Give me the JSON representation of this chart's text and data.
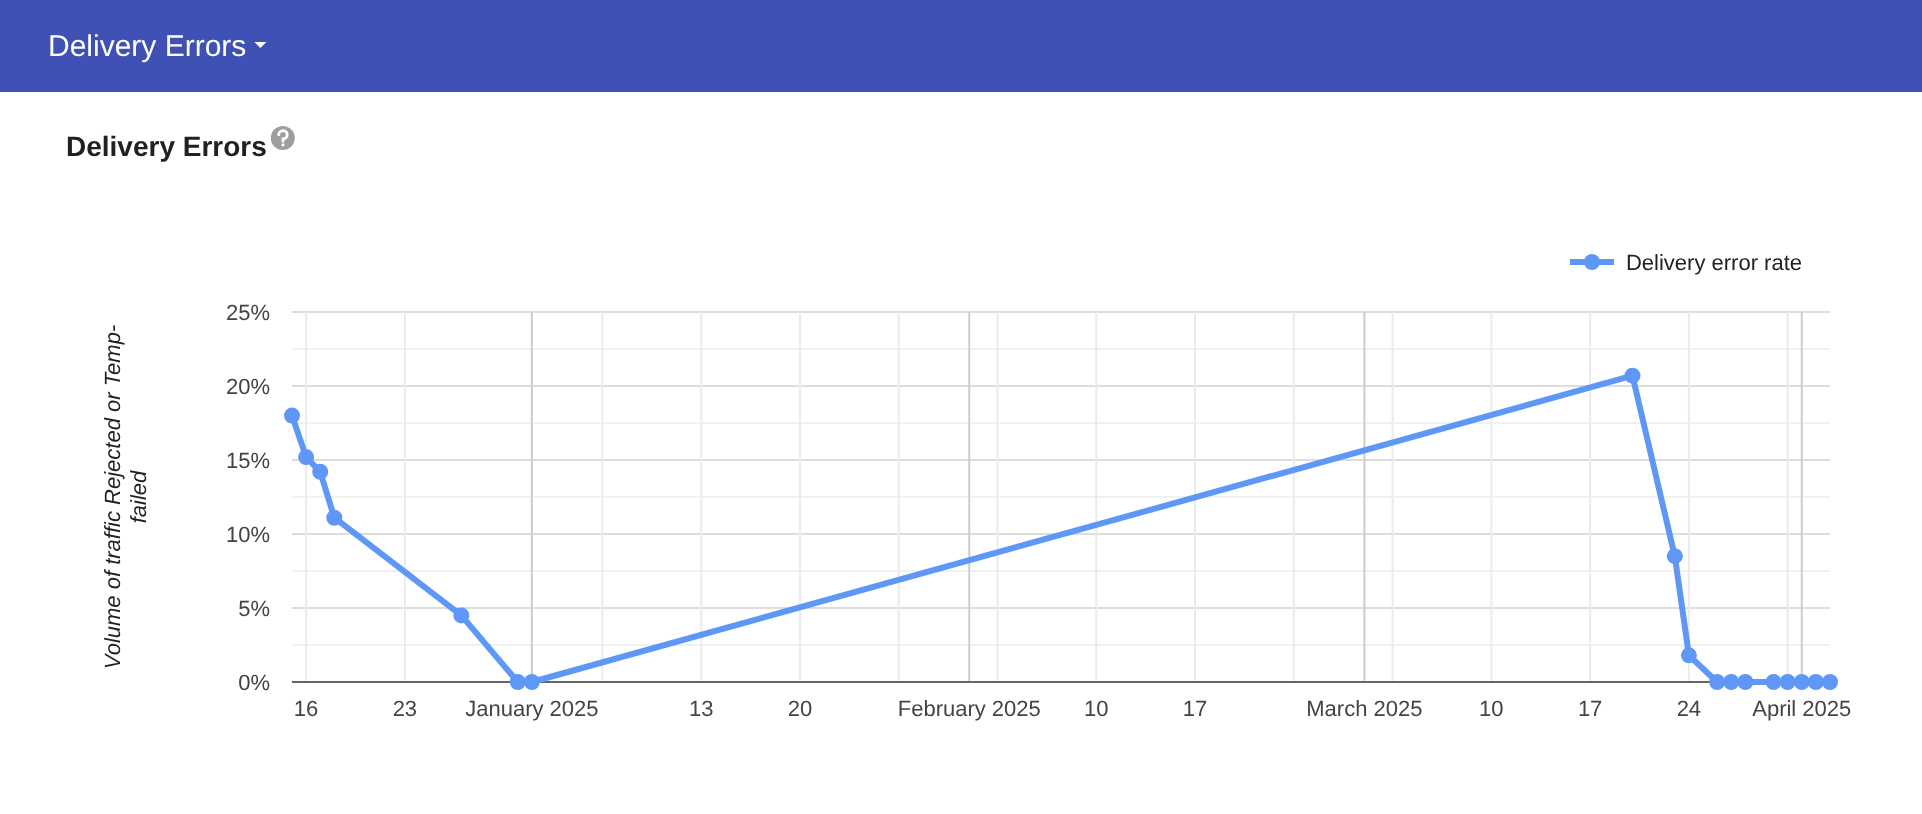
{
  "chart_data": {
    "type": "line",
    "title": "Delivery Errors",
    "annotations": [
      "Delivery Errors"
    ],
    "ylabel": "Volume of traffic Rejected or Temp-failed",
    "x": [
      "2024-12-15",
      "2024-12-16",
      "2024-12-17",
      "2024-12-18",
      "2024-12-27",
      "2024-12-31",
      "2025-01-01",
      "2025-03-20",
      "2025-03-23",
      "2025-03-24",
      "2025-03-26",
      "2025-03-27",
      "2025-03-28",
      "2025-03-30",
      "2025-03-31",
      "2025-04-01",
      "2025-04-02",
      "2025-04-03"
    ],
    "series": [
      {
        "name": "Delivery error rate",
        "color": "#5e97f6",
        "values": [
          18.0,
          15.2,
          14.2,
          11.1,
          4.5,
          0,
          0,
          20.7,
          8.5,
          1.8,
          0,
          0,
          0,
          0,
          0,
          0,
          0,
          0
        ]
      }
    ],
    "xlim": [
      "2024-12-15",
      "2025-04-03"
    ],
    "xticks": [
      {
        "value": "2024-12-16",
        "label": "16"
      },
      {
        "value": "2024-12-23",
        "label": "23"
      },
      {
        "value": "2025-01-01",
        "label": "January 2025"
      },
      {
        "value": "2025-01-06",
        "label": null
      },
      {
        "value": "2025-01-13",
        "label": "13"
      },
      {
        "value": "2025-01-20",
        "label": "20"
      },
      {
        "value": "2025-01-27",
        "label": null
      },
      {
        "value": "2025-02-01",
        "label": "February 2025"
      },
      {
        "value": "2025-02-03",
        "label": null
      },
      {
        "value": "2025-02-10",
        "label": "10"
      },
      {
        "value": "2025-02-17",
        "label": "17"
      },
      {
        "value": "2025-02-24",
        "label": null
      },
      {
        "value": "2025-03-01",
        "label": "March 2025"
      },
      {
        "value": "2025-03-03",
        "label": null
      },
      {
        "value": "2025-03-10",
        "label": "10"
      },
      {
        "value": "2025-03-17",
        "label": "17"
      },
      {
        "value": "2025-03-24",
        "label": "24"
      },
      {
        "value": "2025-03-31",
        "label": null
      },
      {
        "value": "2025-04-01",
        "label": "April 2025"
      }
    ],
    "ylim": [
      0,
      25
    ],
    "yticks": [
      {
        "value": 0,
        "label": "0%"
      },
      {
        "value": 2.5,
        "label": null
      },
      {
        "value": 5,
        "label": "5%"
      },
      {
        "value": 7.5,
        "label": null
      },
      {
        "value": 10,
        "label": "10%"
      },
      {
        "value": 12.5,
        "label": null
      },
      {
        "value": 15,
        "label": "15%"
      },
      {
        "value": 17.5,
        "label": null
      },
      {
        "value": 20,
        "label": "20%"
      },
      {
        "value": 22.5,
        "label": null
      },
      {
        "value": 25,
        "label": "25%"
      }
    ],
    "grid": true,
    "legend": "top right",
    "marker": "circle",
    "line_style": "solid"
  }
}
